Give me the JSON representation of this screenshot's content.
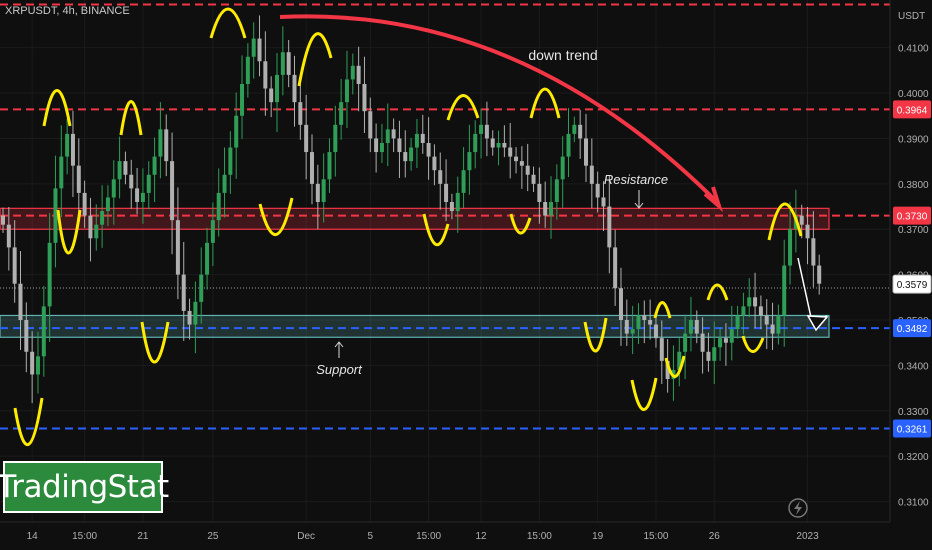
{
  "symbol_title": "XRPUSDT, 4h, BINANCE",
  "brand": "TradingStat",
  "axis_unit": "USDT",
  "annotations": {
    "down_trend": "down trend",
    "resistance": "Resistance",
    "support": "Support"
  },
  "colors": {
    "background": "#0f0f0f",
    "up_candle": "#2f9e57",
    "down_candle": "#b0b0b0",
    "red_line": "#f23645",
    "blue_line": "#2962ff",
    "yellow_marker": "#ffeb00",
    "arrow_red": "#f23645"
  },
  "chart_data": {
    "type": "candlestick",
    "ylim": [
      0.3055,
      0.4205
    ],
    "y_ticks": [
      "0.4100",
      "0.4000",
      "0.3900",
      "0.3800",
      "0.3700",
      "0.3600",
      "0.3500",
      "0.3400",
      "0.3300",
      "0.3200",
      "0.3100"
    ],
    "y_tick_values": [
      0.41,
      0.4,
      0.39,
      0.38,
      0.37,
      0.36,
      0.35,
      0.34,
      0.33,
      0.32,
      0.31
    ],
    "x_ticks": [
      "14",
      "15:00",
      "21",
      "25",
      "Dec",
      "5",
      "15:00",
      "12",
      "15:00",
      "19",
      "15:00",
      "26",
      "2023"
    ],
    "x_tick_index": [
      5,
      14,
      24,
      36,
      52,
      63,
      73,
      82,
      92,
      102,
      112,
      122,
      138
    ],
    "price_labels": [
      {
        "value": 0.3964,
        "label": "0.3964",
        "style": "red"
      },
      {
        "value": 0.373,
        "label": "0.3730",
        "style": "red"
      },
      {
        "value": 0.3579,
        "label": "0.3579",
        "style": "current"
      },
      {
        "value": 0.3482,
        "label": "0.3482",
        "style": "blue"
      },
      {
        "value": 0.3261,
        "label": "0.3261",
        "style": "blue"
      }
    ],
    "horizontal_lines": [
      {
        "value": 0.4195,
        "style": "red-dash"
      },
      {
        "value": 0.3964,
        "style": "red-dash"
      },
      {
        "value": 0.373,
        "style": "red-dash"
      },
      {
        "value": 0.3482,
        "style": "blue-dash"
      },
      {
        "value": 0.3261,
        "style": "blue-dash"
      }
    ],
    "zones": [
      {
        "name": "resistance",
        "top": 0.3746,
        "bottom": 0.37,
        "color": "#f23645"
      },
      {
        "name": "support",
        "top": 0.351,
        "bottom": 0.3462,
        "color": "#5fb3b3"
      }
    ],
    "close_path": [
      0.371,
      0.366,
      0.358,
      0.35,
      0.343,
      0.338,
      0.342,
      0.353,
      0.367,
      0.379,
      0.386,
      0.391,
      0.384,
      0.378,
      0.373,
      0.368,
      0.371,
      0.374,
      0.377,
      0.381,
      0.385,
      0.382,
      0.379,
      0.376,
      0.378,
      0.382,
      0.386,
      0.392,
      0.385,
      0.372,
      0.36,
      0.352,
      0.349,
      0.354,
      0.36,
      0.367,
      0.372,
      0.378,
      0.382,
      0.388,
      0.395,
      0.402,
      0.408,
      0.412,
      0.407,
      0.401,
      0.398,
      0.404,
      0.409,
      0.404,
      0.398,
      0.393,
      0.387,
      0.38,
      0.376,
      0.381,
      0.387,
      0.393,
      0.398,
      0.403,
      0.406,
      0.402,
      0.396,
      0.39,
      0.387,
      0.389,
      0.392,
      0.39,
      0.387,
      0.385,
      0.388,
      0.391,
      0.389,
      0.386,
      0.383,
      0.38,
      0.376,
      0.374,
      0.378,
      0.383,
      0.387,
      0.391,
      0.393,
      0.39,
      0.388,
      0.389,
      0.388,
      0.386,
      0.385,
      0.384,
      0.382,
      0.38,
      0.376,
      0.373,
      0.376,
      0.381,
      0.386,
      0.391,
      0.393,
      0.39,
      0.384,
      0.38,
      0.377,
      0.375,
      0.366,
      0.357,
      0.35,
      0.347,
      0.348,
      0.351,
      0.35,
      0.349,
      0.346,
      0.341,
      0.337,
      0.339,
      0.343,
      0.347,
      0.35,
      0.347,
      0.343,
      0.341,
      0.344,
      0.346,
      0.345,
      0.348,
      0.351,
      0.353,
      0.355,
      0.353,
      0.351,
      0.349,
      0.347,
      0.351,
      0.362,
      0.37,
      0.373,
      0.371,
      0.368,
      0.362,
      0.358
    ]
  }
}
